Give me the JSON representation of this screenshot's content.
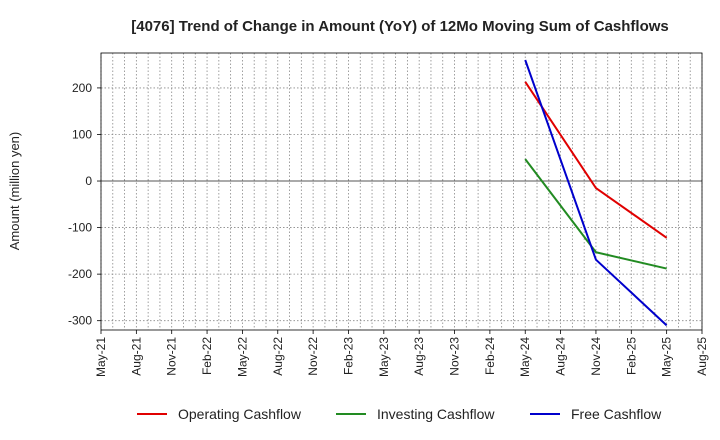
{
  "chart_data": {
    "type": "line",
    "title": "[4076]  Trend of Change in Amount (YoY) of 12Mo Moving Sum of Cashflows",
    "xlabel": "",
    "ylabel": "Amount (million yen)",
    "ylim": [
      -320,
      275
    ],
    "yticks": [
      200,
      100,
      0,
      -100,
      -200,
      -300
    ],
    "ytick_labels": [
      "200",
      "100",
      "0",
      "-100",
      "-200",
      "-300"
    ],
    "x_tick_labels": [
      "May-21",
      "Aug-21",
      "Nov-21",
      "Feb-22",
      "May-22",
      "Aug-22",
      "Nov-22",
      "Feb-23",
      "May-23",
      "Aug-23",
      "Nov-23",
      "Feb-24",
      "May-24",
      "Aug-24",
      "Nov-24",
      "Feb-25",
      "May-25",
      "Aug-25"
    ],
    "grid": true,
    "legend_position": "bottom",
    "series": [
      {
        "name": "Operating Cashflow",
        "color": "#e00000",
        "points": [
          {
            "x": "May-24",
            "y": 213
          },
          {
            "x": "Nov-24",
            "y": -15
          },
          {
            "x": "May-25",
            "y": -122
          }
        ]
      },
      {
        "name": "Investing Cashflow",
        "color": "#228b22",
        "points": [
          {
            "x": "May-24",
            "y": 47
          },
          {
            "x": "Nov-24",
            "y": -153
          },
          {
            "x": "May-25",
            "y": -188
          }
        ]
      },
      {
        "name": "Free Cashflow",
        "color": "#0000cc",
        "points": [
          {
            "x": "May-24",
            "y": 260
          },
          {
            "x": "Nov-24",
            "y": -169
          },
          {
            "x": "May-25",
            "y": -310
          }
        ]
      }
    ]
  }
}
